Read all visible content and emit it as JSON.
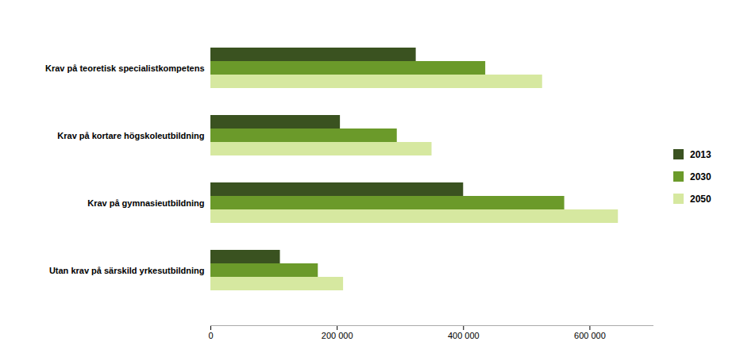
{
  "chart_data": {
    "type": "bar",
    "orientation": "horizontal",
    "categories": [
      "Utan krav på särskild yrkesutbildning",
      "Krav på gymnasieutbildning",
      "Krav på kortare högskoleutbildning",
      "Krav på teoretisk specialistkompetens"
    ],
    "series": [
      {
        "name": "2013",
        "color": "#3a5220",
        "values": [
          110000,
          400000,
          205000,
          325000
        ]
      },
      {
        "name": "2030",
        "color": "#6b9a2a",
        "values": [
          170000,
          560000,
          295000,
          435000
        ]
      },
      {
        "name": "2050",
        "color": "#d6e8a0",
        "values": [
          210000,
          645000,
          350000,
          525000
        ]
      }
    ],
    "xlim": [
      0,
      700000
    ],
    "xticks": [
      0,
      {
        "value": 200000,
        "label": "200 000"
      },
      {
        "value": 400000,
        "label": "400 000"
      },
      {
        "value": 600000,
        "label": "600 000"
      }
    ],
    "grid": false,
    "legend": "right"
  }
}
